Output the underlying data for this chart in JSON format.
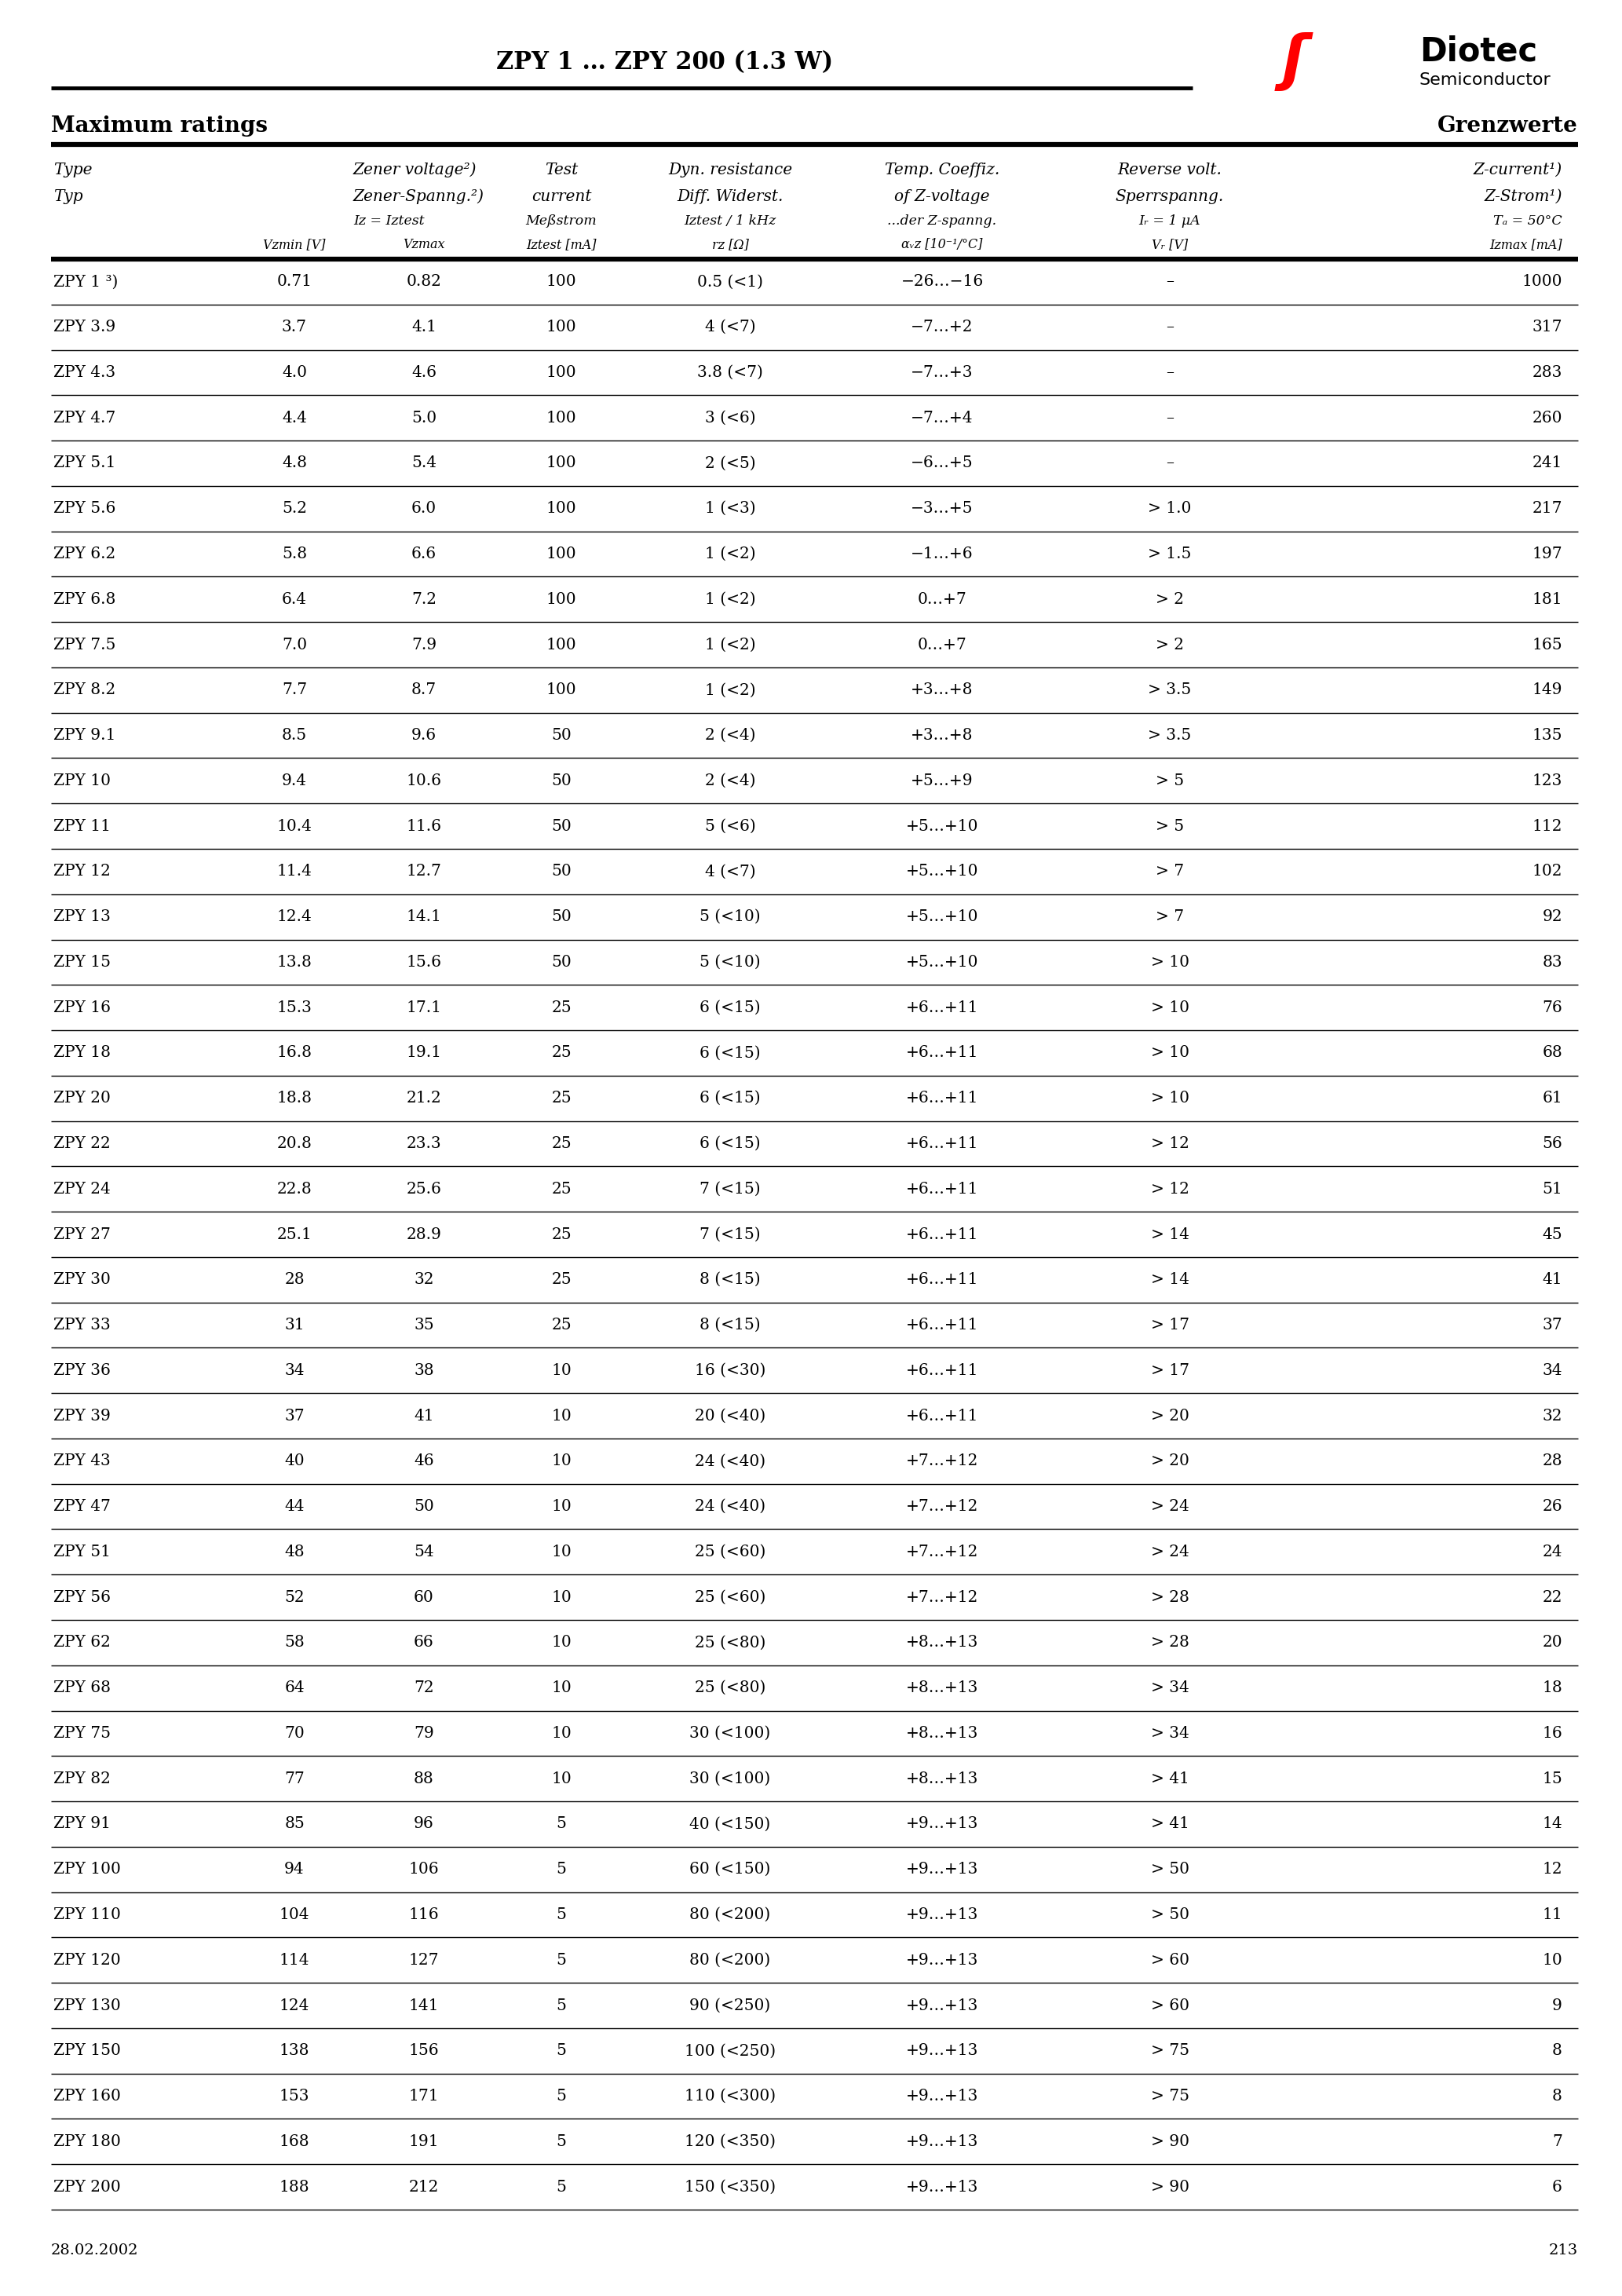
{
  "title": "ZPY 1 … ZPY 200 (1.3 W)",
  "header_left": "Maximum ratings",
  "header_right": "Grenzwerte",
  "date": "28.02.2002",
  "page": "213",
  "rows": [
    [
      "ZPY 1 ³)",
      "0.71",
      "0.82",
      "100",
      "0.5 (<1)",
      "−26…−16",
      "–",
      "1000"
    ],
    [
      "ZPY 3.9",
      "3.7",
      "4.1",
      "100",
      "4 (<7)",
      "−7…+2",
      "–",
      "317"
    ],
    [
      "ZPY 4.3",
      "4.0",
      "4.6",
      "100",
      "3.8 (<7)",
      "−7…+3",
      "–",
      "283"
    ],
    [
      "ZPY 4.7",
      "4.4",
      "5.0",
      "100",
      "3 (<6)",
      "−7…+4",
      "–",
      "260"
    ],
    [
      "ZPY 5.1",
      "4.8",
      "5.4",
      "100",
      "2 (<5)",
      "−6…+5",
      "–",
      "241"
    ],
    [
      "ZPY 5.6",
      "5.2",
      "6.0",
      "100",
      "1 (<3)",
      "−3…+5",
      "> 1.0",
      "217"
    ],
    [
      "ZPY 6.2",
      "5.8",
      "6.6",
      "100",
      "1 (<2)",
      "−1…+6",
      "> 1.5",
      "197"
    ],
    [
      "ZPY 6.8",
      "6.4",
      "7.2",
      "100",
      "1 (<2)",
      "0…+7",
      "> 2",
      "181"
    ],
    [
      "ZPY 7.5",
      "7.0",
      "7.9",
      "100",
      "1 (<2)",
      "0…+7",
      "> 2",
      "165"
    ],
    [
      "ZPY 8.2",
      "7.7",
      "8.7",
      "100",
      "1 (<2)",
      "+3…+8",
      "> 3.5",
      "149"
    ],
    [
      "ZPY 9.1",
      "8.5",
      "9.6",
      "50",
      "2 (<4)",
      "+3…+8",
      "> 3.5",
      "135"
    ],
    [
      "ZPY 10",
      "9.4",
      "10.6",
      "50",
      "2 (<4)",
      "+5…+9",
      "> 5",
      "123"
    ],
    [
      "ZPY 11",
      "10.4",
      "11.6",
      "50",
      "5 (<6)",
      "+5…+10",
      "> 5",
      "112"
    ],
    [
      "ZPY 12",
      "11.4",
      "12.7",
      "50",
      "4 (<7)",
      "+5…+10",
      "> 7",
      "102"
    ],
    [
      "ZPY 13",
      "12.4",
      "14.1",
      "50",
      "5 (<10)",
      "+5…+10",
      "> 7",
      "92"
    ],
    [
      "ZPY 15",
      "13.8",
      "15.6",
      "50",
      "5 (<10)",
      "+5…+10",
      "> 10",
      "83"
    ],
    [
      "ZPY 16",
      "15.3",
      "17.1",
      "25",
      "6 (<15)",
      "+6…+11",
      "> 10",
      "76"
    ],
    [
      "ZPY 18",
      "16.8",
      "19.1",
      "25",
      "6 (<15)",
      "+6…+11",
      "> 10",
      "68"
    ],
    [
      "ZPY 20",
      "18.8",
      "21.2",
      "25",
      "6 (<15)",
      "+6…+11",
      "> 10",
      "61"
    ],
    [
      "ZPY 22",
      "20.8",
      "23.3",
      "25",
      "6 (<15)",
      "+6…+11",
      "> 12",
      "56"
    ],
    [
      "ZPY 24",
      "22.8",
      "25.6",
      "25",
      "7 (<15)",
      "+6…+11",
      "> 12",
      "51"
    ],
    [
      "ZPY 27",
      "25.1",
      "28.9",
      "25",
      "7 (<15)",
      "+6…+11",
      "> 14",
      "45"
    ],
    [
      "ZPY 30",
      "28",
      "32",
      "25",
      "8 (<15)",
      "+6…+11",
      "> 14",
      "41"
    ],
    [
      "ZPY 33",
      "31",
      "35",
      "25",
      "8 (<15)",
      "+6…+11",
      "> 17",
      "37"
    ],
    [
      "ZPY 36",
      "34",
      "38",
      "10",
      "16 (<30)",
      "+6…+11",
      "> 17",
      "34"
    ],
    [
      "ZPY 39",
      "37",
      "41",
      "10",
      "20 (<40)",
      "+6…+11",
      "> 20",
      "32"
    ],
    [
      "ZPY 43",
      "40",
      "46",
      "10",
      "24 (<40)",
      "+7…+12",
      "> 20",
      "28"
    ],
    [
      "ZPY 47",
      "44",
      "50",
      "10",
      "24 (<40)",
      "+7…+12",
      "> 24",
      "26"
    ],
    [
      "ZPY 51",
      "48",
      "54",
      "10",
      "25 (<60)",
      "+7…+12",
      "> 24",
      "24"
    ],
    [
      "ZPY 56",
      "52",
      "60",
      "10",
      "25 (<60)",
      "+7…+12",
      "> 28",
      "22"
    ],
    [
      "ZPY 62",
      "58",
      "66",
      "10",
      "25 (<80)",
      "+8…+13",
      "> 28",
      "20"
    ],
    [
      "ZPY 68",
      "64",
      "72",
      "10",
      "25 (<80)",
      "+8…+13",
      "> 34",
      "18"
    ],
    [
      "ZPY 75",
      "70",
      "79",
      "10",
      "30 (<100)",
      "+8…+13",
      "> 34",
      "16"
    ],
    [
      "ZPY 82",
      "77",
      "88",
      "10",
      "30 (<100)",
      "+8…+13",
      "> 41",
      "15"
    ],
    [
      "ZPY 91",
      "85",
      "96",
      "5",
      "40 (<150)",
      "+9…+13",
      "> 41",
      "14"
    ],
    [
      "ZPY 100",
      "94",
      "106",
      "5",
      "60 (<150)",
      "+9…+13",
      "> 50",
      "12"
    ],
    [
      "ZPY 110",
      "104",
      "116",
      "5",
      "80 (<200)",
      "+9…+13",
      "> 50",
      "11"
    ],
    [
      "ZPY 120",
      "114",
      "127",
      "5",
      "80 (<200)",
      "+9…+13",
      "> 60",
      "10"
    ],
    [
      "ZPY 130",
      "124",
      "141",
      "5",
      "90 (<250)",
      "+9…+13",
      "> 60",
      "9"
    ],
    [
      "ZPY 150",
      "138",
      "156",
      "5",
      "100 (<250)",
      "+9…+13",
      "> 75",
      "8"
    ],
    [
      "ZPY 160",
      "153",
      "171",
      "5",
      "110 (<300)",
      "+9…+13",
      "> 75",
      "8"
    ],
    [
      "ZPY 180",
      "168",
      "191",
      "5",
      "120 (<350)",
      "+9…+13",
      "> 90",
      "7"
    ],
    [
      "ZPY 200",
      "188",
      "212",
      "5",
      "150 (<350)",
      "+9…+13",
      "> 90",
      "6"
    ]
  ]
}
